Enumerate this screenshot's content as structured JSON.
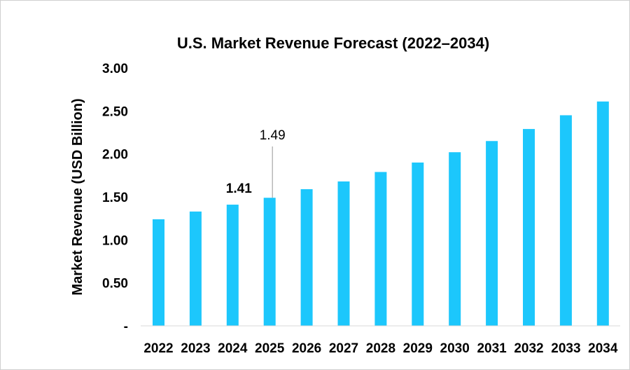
{
  "chart_data": {
    "type": "bar",
    "title": "U.S. Market Revenue Forecast (2022–2034)",
    "xlabel": "",
    "ylabel": "Market Revenue (USD  Billion)",
    "ylim": [
      0,
      3
    ],
    "yticks": [
      "-",
      "0.50",
      "1.00",
      "1.50",
      "2.00",
      "2.50",
      "3.00"
    ],
    "categories": [
      "2022",
      "2023",
      "2024",
      "2025",
      "2026",
      "2027",
      "2028",
      "2029",
      "2030",
      "2031",
      "2032",
      "2033",
      "2034"
    ],
    "values": [
      1.24,
      1.33,
      1.41,
      1.49,
      1.59,
      1.68,
      1.79,
      1.9,
      2.02,
      2.15,
      2.29,
      2.45,
      2.61
    ],
    "data_labels": [
      {
        "category": "2024",
        "text": "1.41"
      },
      {
        "category": "2025",
        "text": "1.49"
      }
    ],
    "grid": false,
    "bar_color": "#1CC7FC"
  }
}
